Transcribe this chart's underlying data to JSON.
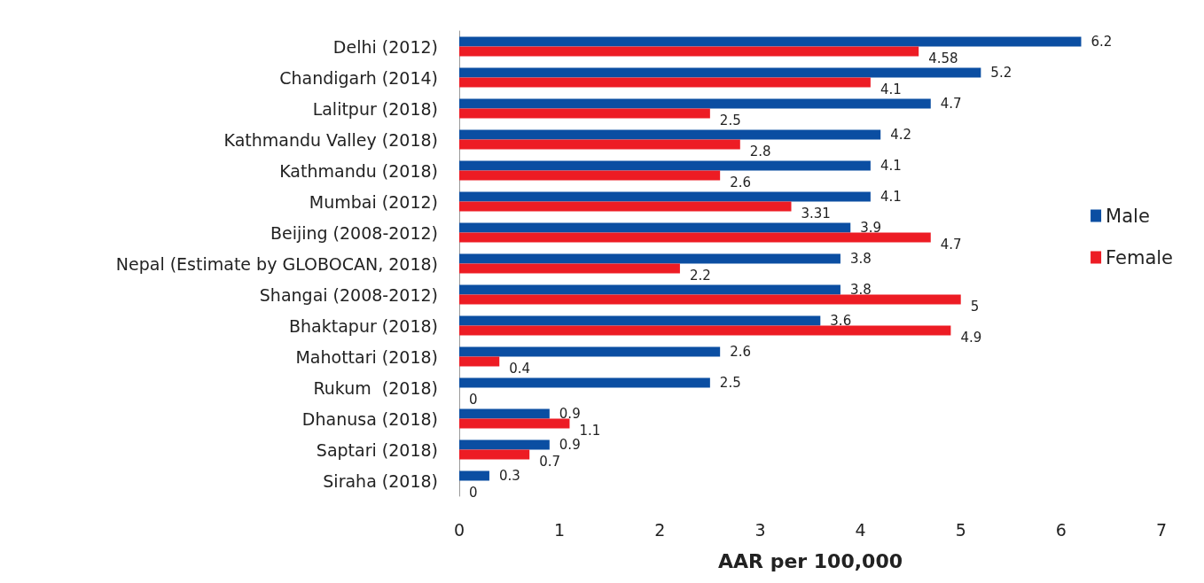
{
  "chart_data": {
    "type": "bar",
    "orientation": "horizontal",
    "xlabel": "AAR per 100,000",
    "categories": [
      "Delhi (2012)",
      "Chandigarh (2014)",
      "Lalitpur (2018)",
      "Kathmandu Valley (2018)",
      "Kathmandu (2018)",
      "Mumbai (2012)",
      "Beijing (2008-2012)",
      "Nepal (Estimate by GLOBOCAN, 2018)",
      "Shangai (2008-2012)",
      "Bhaktapur (2018)",
      "Mahottari (2018)",
      "Rukum  (2018)",
      "Dhanusa (2018)",
      "Saptari (2018)",
      "Siraha (2018)"
    ],
    "series": [
      {
        "name": "Male",
        "color": "#0b4ea2",
        "values": [
          6.2,
          5.2,
          4.7,
          4.2,
          4.1,
          4.1,
          3.9,
          3.8,
          3.8,
          3.6,
          2.6,
          2.5,
          0.9,
          0.9,
          0.3
        ]
      },
      {
        "name": "Female",
        "color": "#ed1c24",
        "values": [
          4.58,
          4.1,
          2.5,
          2.8,
          2.6,
          3.31,
          4.7,
          2.2,
          5,
          4.9,
          0.4,
          0,
          1.1,
          0.7,
          0
        ]
      }
    ],
    "xlim": [
      0,
      7
    ],
    "xticks": [
      0,
      1,
      2,
      3,
      4,
      5,
      6,
      7
    ],
    "data_labels": true,
    "legend": "right",
    "grid": false
  }
}
